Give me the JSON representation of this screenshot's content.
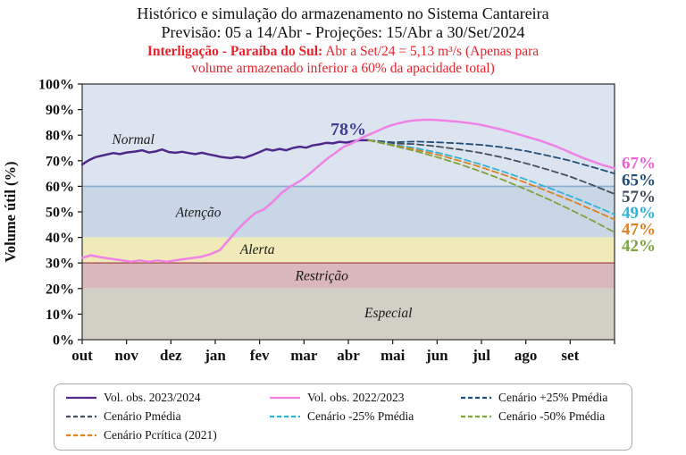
{
  "header": {
    "title": "Histórico e simulação do armazenamento no Sistema Cantareira",
    "subtitle": "Previsão: 05 a 14/Abr -  Projeções: 15/Abr a 30/Set/2024",
    "note_bold": "Interligação - Paraíba do Sul:",
    "note_rest": " Abr a Set/24 = 5,13 m³/s (Apenas para",
    "note_line2": "volume armazenado inferior a 60% da apacidade total)"
  },
  "chart_data": {
    "type": "line",
    "title": "Histórico e simulação do armazenamento no Sistema Cantareira",
    "ylabel": "Volume útil (%)",
    "ylim": [
      0,
      100
    ],
    "y_tick_step": 10,
    "x_months": [
      "out",
      "nov",
      "dez",
      "jan",
      "fev",
      "mar",
      "abr",
      "mai",
      "jun",
      "jul",
      "ago",
      "set"
    ],
    "zones": [
      {
        "label": "Normal",
        "from": 60,
        "to": 100,
        "color": "#dce5ef"
      },
      {
        "label": "Atenção",
        "from": 40,
        "to": 60,
        "color": "#c8d6e5"
      },
      {
        "label": "Alerta",
        "from": 30,
        "to": 40,
        "color": "#efeab8"
      },
      {
        "label": "Restrição",
        "from": 20,
        "to": 30,
        "color": "#d9b7bb"
      },
      {
        "label": "Especial",
        "from": 0,
        "to": 20,
        "color": "#d2cfc4"
      }
    ],
    "annotation": {
      "text": "78%"
    },
    "series": [
      {
        "name": "Vol. obs. 2023/2024",
        "color": "#50288c",
        "style": "solid",
        "points": [
          [
            0,
            68.5
          ],
          [
            0.15,
            70.2
          ],
          [
            0.3,
            71.4
          ],
          [
            0.5,
            72.2
          ],
          [
            0.7,
            73
          ],
          [
            0.85,
            72.6
          ],
          [
            1,
            73.2
          ],
          [
            1.2,
            73.6
          ],
          [
            1.35,
            74.1
          ],
          [
            1.5,
            73.2
          ],
          [
            1.65,
            73.6
          ],
          [
            1.8,
            74.4
          ],
          [
            1.95,
            73.4
          ],
          [
            2.1,
            73.1
          ],
          [
            2.25,
            73.5
          ],
          [
            2.4,
            73
          ],
          [
            2.55,
            72.6
          ],
          [
            2.7,
            73.1
          ],
          [
            2.85,
            72.5
          ],
          [
            3,
            72
          ],
          [
            3.15,
            71.4
          ],
          [
            3.35,
            71
          ],
          [
            3.5,
            71.5
          ],
          [
            3.65,
            71.1
          ],
          [
            3.8,
            72
          ],
          [
            4,
            73.4
          ],
          [
            4.15,
            74.5
          ],
          [
            4.3,
            74
          ],
          [
            4.45,
            74.6
          ],
          [
            4.6,
            74.1
          ],
          [
            4.75,
            75
          ],
          [
            4.9,
            75.5
          ],
          [
            5.05,
            75.1
          ],
          [
            5.2,
            76
          ],
          [
            5.35,
            76.4
          ],
          [
            5.5,
            77
          ],
          [
            5.65,
            76.8
          ],
          [
            5.8,
            77.4
          ],
          [
            5.95,
            77.1
          ],
          [
            6.1,
            77.6
          ],
          [
            6.25,
            78
          ],
          [
            6.45,
            78
          ]
        ]
      },
      {
        "name": "Vol. obs. 2022/2023",
        "color": "#ef82e4",
        "style": "solid",
        "points": [
          [
            0,
            32
          ],
          [
            0.2,
            33
          ],
          [
            0.35,
            32.5
          ],
          [
            0.5,
            32
          ],
          [
            0.7,
            31.5
          ],
          [
            0.9,
            31
          ],
          [
            1.1,
            30.5
          ],
          [
            1.3,
            31
          ],
          [
            1.5,
            30.5
          ],
          [
            1.7,
            31
          ],
          [
            1.9,
            30.5
          ],
          [
            2.1,
            31
          ],
          [
            2.3,
            31.5
          ],
          [
            2.5,
            32
          ],
          [
            2.7,
            32.5
          ],
          [
            2.9,
            33.5
          ],
          [
            3.1,
            35
          ],
          [
            3.3,
            39
          ],
          [
            3.5,
            43
          ],
          [
            3.7,
            46.5
          ],
          [
            3.9,
            49.5
          ],
          [
            4.1,
            51
          ],
          [
            4.3,
            54
          ],
          [
            4.5,
            57.5
          ],
          [
            4.7,
            60
          ],
          [
            4.9,
            62
          ],
          [
            5.1,
            64.5
          ],
          [
            5.3,
            67.5
          ],
          [
            5.5,
            70.5
          ],
          [
            5.7,
            73
          ],
          [
            5.9,
            75.5
          ],
          [
            6.1,
            77
          ],
          [
            6.3,
            79
          ],
          [
            6.5,
            80.5
          ],
          [
            6.7,
            82
          ],
          [
            6.9,
            83.5
          ],
          [
            7.1,
            84.5
          ],
          [
            7.3,
            85.3
          ],
          [
            7.5,
            85.8
          ],
          [
            7.7,
            86
          ],
          [
            7.9,
            86
          ],
          [
            8.1,
            85.8
          ],
          [
            8.3,
            85.5
          ],
          [
            8.5,
            85.2
          ],
          [
            8.7,
            84.8
          ],
          [
            8.9,
            84.3
          ],
          [
            9.1,
            83.6
          ],
          [
            9.3,
            82.8
          ],
          [
            9.5,
            82
          ],
          [
            9.7,
            81
          ],
          [
            9.9,
            80
          ],
          [
            10.1,
            79
          ],
          [
            10.3,
            78
          ],
          [
            10.5,
            76.8
          ],
          [
            10.7,
            75.5
          ],
          [
            10.9,
            74
          ],
          [
            11.1,
            72.5
          ],
          [
            11.3,
            71
          ],
          [
            11.5,
            69.8
          ],
          [
            11.7,
            68.5
          ],
          [
            11.9,
            67.5
          ],
          [
            12,
            67
          ]
        ]
      },
      {
        "name": "Cenário +25% Pmédia",
        "color": "#1f4e79",
        "style": "dashed",
        "points": [
          [
            6.45,
            78
          ],
          [
            7,
            77.2
          ],
          [
            7.5,
            77.5
          ],
          [
            8,
            77.2
          ],
          [
            8.5,
            76.8
          ],
          [
            9,
            76.2
          ],
          [
            9.5,
            75.2
          ],
          [
            10,
            73.8
          ],
          [
            10.5,
            72
          ],
          [
            11,
            70
          ],
          [
            11.5,
            67.5
          ],
          [
            12,
            65
          ]
        ]
      },
      {
        "name": "Cenário Pmédia",
        "color": "#44505e",
        "style": "dashed",
        "points": [
          [
            6.45,
            78
          ],
          [
            7,
            76.8
          ],
          [
            7.5,
            76.5
          ],
          [
            8,
            75.6
          ],
          [
            8.5,
            74.4
          ],
          [
            9,
            73
          ],
          [
            9.5,
            71.2
          ],
          [
            10,
            69
          ],
          [
            10.5,
            66.5
          ],
          [
            11,
            63.8
          ],
          [
            11.5,
            60.5
          ],
          [
            12,
            57
          ]
        ]
      },
      {
        "name": "Cenário -25% Pmédia",
        "color": "#2fb3d9",
        "style": "dashed",
        "points": [
          [
            6.45,
            78
          ],
          [
            7,
            76.3
          ],
          [
            7.5,
            75
          ],
          [
            8,
            73.2
          ],
          [
            8.5,
            71
          ],
          [
            9,
            68.5
          ],
          [
            9.5,
            65.7
          ],
          [
            10,
            62.7
          ],
          [
            10.5,
            59.5
          ],
          [
            11,
            56.2
          ],
          [
            11.5,
            52.7
          ],
          [
            12,
            49
          ]
        ]
      },
      {
        "name": "Cenário Pcrítica (2021)",
        "color": "#e0801e",
        "style": "dashed",
        "points": [
          [
            6.45,
            78
          ],
          [
            7,
            76.1
          ],
          [
            7.5,
            74.4
          ],
          [
            8,
            72.4
          ],
          [
            8.5,
            70
          ],
          [
            9,
            67.4
          ],
          [
            9.5,
            64.5
          ],
          [
            10,
            61.4
          ],
          [
            10.5,
            58
          ],
          [
            11,
            54.5
          ],
          [
            11.5,
            50.8
          ],
          [
            12,
            47
          ]
        ]
      },
      {
        "name": "Cenário -50% Pmédia",
        "color": "#7da33d",
        "style": "dashed",
        "points": [
          [
            6.45,
            78
          ],
          [
            7,
            75.9
          ],
          [
            7.5,
            73.8
          ],
          [
            8,
            71.4
          ],
          [
            8.5,
            68.7
          ],
          [
            9,
            65.7
          ],
          [
            9.5,
            62.4
          ],
          [
            10,
            58.8
          ],
          [
            10.5,
            55
          ],
          [
            11,
            50.9
          ],
          [
            11.5,
            46.6
          ],
          [
            12,
            42
          ]
        ]
      }
    ],
    "end_labels": [
      {
        "text": "67%",
        "color": "#ee5fd9"
      },
      {
        "text": "65%",
        "color": "#1f4e79"
      },
      {
        "text": "57%",
        "color": "#3f4a58"
      },
      {
        "text": "49%",
        "color": "#2fb3d9"
      },
      {
        "text": "47%",
        "color": "#e0801e"
      },
      {
        "text": "42%",
        "color": "#7da33d"
      }
    ]
  },
  "legend": {
    "items": [
      {
        "label": "Vol. obs. 2023/2024",
        "color": "#50288c",
        "style": "solid"
      },
      {
        "label": "Vol. obs. 2022/2023",
        "color": "#ef82e4",
        "style": "solid"
      },
      {
        "label": "Cenário +25% Pmédia",
        "color": "#1f4e79",
        "style": "dashed"
      },
      {
        "label": "Cenário Pmédia",
        "color": "#44505e",
        "style": "dashed"
      },
      {
        "label": "Cenário -25% Pmédia",
        "color": "#2fb3d9",
        "style": "dashed"
      },
      {
        "label": "Cenário -50% Pmédia",
        "color": "#7da33d",
        "style": "dashed"
      },
      {
        "label": "Cenário Pcrítica (2021)",
        "color": "#e0801e",
        "style": "dashed"
      }
    ]
  }
}
